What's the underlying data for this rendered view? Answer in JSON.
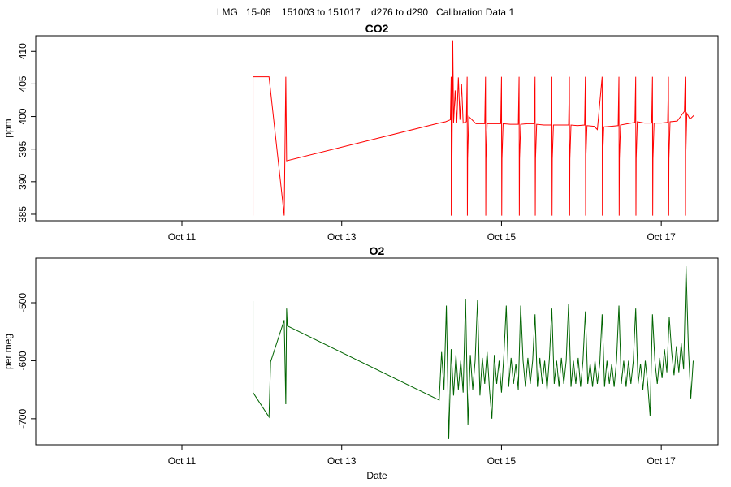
{
  "title": "LMG   15-08    151003 to 151017    d276 to d290   Calibration Data 1",
  "chart_data": [
    {
      "type": "line",
      "title": "CO2",
      "ylabel": "ppm",
      "color": "#ff0000",
      "xlim": [
        9.17,
        17.71
      ],
      "xticks": [
        {
          "value": 11,
          "label": "Oct 11"
        },
        {
          "value": 13,
          "label": "Oct 13"
        },
        {
          "value": 15,
          "label": "Oct 15"
        },
        {
          "value": 17,
          "label": "Oct 17"
        }
      ],
      "ylim": [
        384.0,
        412.4
      ],
      "yticks": [
        385,
        390,
        395,
        400,
        405,
        410
      ],
      "x": [
        11.89,
        11.89,
        12.09,
        12.28,
        12.3,
        12.31,
        14.22,
        14.3,
        14.36,
        14.37,
        14.371,
        14.38,
        14.39,
        14.4,
        14.42,
        14.44,
        14.46,
        14.48,
        14.5,
        14.52,
        14.56,
        14.57,
        14.573,
        14.576,
        14.59,
        14.68,
        14.79,
        14.8,
        14.803,
        14.806,
        14.82,
        14.9,
        14.99,
        15.0,
        15.003,
        15.006,
        15.02,
        15.11,
        15.21,
        15.22,
        15.223,
        15.226,
        15.24,
        15.32,
        15.41,
        15.42,
        15.423,
        15.426,
        15.44,
        15.53,
        15.62,
        15.63,
        15.633,
        15.636,
        15.65,
        15.74,
        15.84,
        15.85,
        15.853,
        15.856,
        15.87,
        15.95,
        16.04,
        16.05,
        16.053,
        16.056,
        16.07,
        16.16,
        16.2,
        16.26,
        16.263,
        16.266,
        16.28,
        16.37,
        16.46,
        16.47,
        16.473,
        16.476,
        16.49,
        16.58,
        16.67,
        16.68,
        16.683,
        16.686,
        16.7,
        16.79,
        16.88,
        16.89,
        16.893,
        16.896,
        16.91,
        17.0,
        17.08,
        17.09,
        17.093,
        17.096,
        17.11,
        17.2,
        17.29,
        17.3,
        17.303,
        17.306,
        17.32,
        17.36,
        17.41
      ],
      "values": [
        384.8,
        406.1,
        406.1,
        384.8,
        406.1,
        393.2,
        399.0,
        399.2,
        399.5,
        406.1,
        384.8,
        393.0,
        411.7,
        399.0,
        404.0,
        399.0,
        406.0,
        399.5,
        405.0,
        399.0,
        399.2,
        406.1,
        384.8,
        393.5,
        400.0,
        398.9,
        398.9,
        406.1,
        384.8,
        393.5,
        398.9,
        398.9,
        398.9,
        406.1,
        384.8,
        393.5,
        398.9,
        398.8,
        398.8,
        406.1,
        384.8,
        393.5,
        398.8,
        398.9,
        398.9,
        406.1,
        384.8,
        393.5,
        398.8,
        398.7,
        398.7,
        406.1,
        384.8,
        393.5,
        398.7,
        398.7,
        398.7,
        406.1,
        384.8,
        393.5,
        398.7,
        398.6,
        398.7,
        406.1,
        384.8,
        393.5,
        398.6,
        398.5,
        398.0,
        406.1,
        384.8,
        393.5,
        398.4,
        398.5,
        398.6,
        406.1,
        384.8,
        393.5,
        398.7,
        398.9,
        399.1,
        406.1,
        384.8,
        393.5,
        399.2,
        399.0,
        399.0,
        406.1,
        384.8,
        393.5,
        399.0,
        399.0,
        399.1,
        406.1,
        384.8,
        393.5,
        399.2,
        399.3,
        400.8,
        406.1,
        384.8,
        393.5,
        400.5,
        399.6,
        400.2
      ]
    },
    {
      "type": "line",
      "title": "O2",
      "ylabel": "per meg",
      "xlabel": "Date",
      "color": "#006400",
      "xlim": [
        9.17,
        17.71
      ],
      "xticks": [
        {
          "value": 11,
          "label": "Oct 11"
        },
        {
          "value": 13,
          "label": "Oct 13"
        },
        {
          "value": 15,
          "label": "Oct 15"
        },
        {
          "value": 17,
          "label": "Oct 17"
        }
      ],
      "ylim": [
        -745,
        -423
      ],
      "yticks": [
        -700,
        -600,
        -500
      ],
      "x": [
        11.89,
        11.89,
        12.09,
        12.11,
        12.28,
        12.3,
        12.31,
        12.32,
        14.22,
        14.25,
        14.28,
        14.31,
        14.34,
        14.37,
        14.4,
        14.43,
        14.46,
        14.49,
        14.52,
        14.55,
        14.58,
        14.61,
        14.64,
        14.67,
        14.7,
        14.73,
        14.76,
        14.79,
        14.82,
        14.85,
        14.88,
        14.91,
        14.94,
        14.97,
        15.0,
        15.03,
        15.06,
        15.09,
        15.12,
        15.15,
        15.18,
        15.21,
        15.24,
        15.27,
        15.3,
        15.33,
        15.36,
        15.39,
        15.42,
        15.45,
        15.48,
        15.51,
        15.54,
        15.57,
        15.6,
        15.63,
        15.66,
        15.69,
        15.72,
        15.75,
        15.78,
        15.81,
        15.84,
        15.87,
        15.9,
        15.93,
        15.96,
        15.99,
        16.02,
        16.05,
        16.08,
        16.11,
        16.14,
        16.17,
        16.2,
        16.23,
        16.26,
        16.29,
        16.32,
        16.35,
        16.38,
        16.41,
        16.44,
        16.47,
        16.5,
        16.53,
        16.56,
        16.59,
        16.62,
        16.65,
        16.68,
        16.71,
        16.74,
        16.77,
        16.8,
        16.83,
        16.86,
        16.89,
        16.92,
        16.95,
        16.98,
        17.01,
        17.04,
        17.07,
        17.1,
        17.13,
        17.16,
        17.19,
        17.22,
        17.25,
        17.28,
        17.31,
        17.34,
        17.37,
        17.4
      ],
      "values": [
        -497,
        -655,
        -697,
        -602,
        -530,
        -675,
        -510,
        -540,
        -668,
        -585,
        -650,
        -505,
        -735,
        -580,
        -660,
        -590,
        -650,
        -600,
        -655,
        -493,
        -710,
        -590,
        -650,
        -600,
        -495,
        -660,
        -595,
        -640,
        -585,
        -650,
        -700,
        -590,
        -640,
        -600,
        -655,
        -590,
        -505,
        -645,
        -595,
        -640,
        -605,
        -650,
        -505,
        -600,
        -645,
        -595,
        -640,
        -600,
        -520,
        -645,
        -595,
        -640,
        -600,
        -650,
        -595,
        -510,
        -640,
        -600,
        -645,
        -595,
        -640,
        -600,
        -502,
        -645,
        -600,
        -640,
        -595,
        -645,
        -600,
        -515,
        -640,
        -605,
        -645,
        -600,
        -640,
        -605,
        -520,
        -645,
        -600,
        -640,
        -605,
        -645,
        -600,
        -505,
        -640,
        -600,
        -645,
        -600,
        -640,
        -600,
        -510,
        -640,
        -605,
        -650,
        -600,
        -640,
        -695,
        -520,
        -600,
        -640,
        -595,
        -630,
        -580,
        -620,
        -525,
        -585,
        -625,
        -575,
        -620,
        -570,
        -615,
        -437,
        -580,
        -665,
        -600
      ]
    }
  ]
}
